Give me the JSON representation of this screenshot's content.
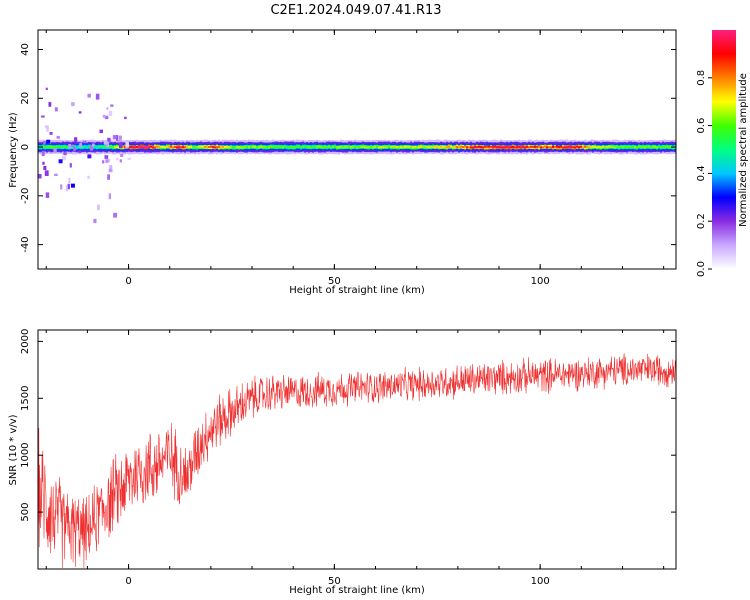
{
  "title": "C2E1.2024.049.07.41.R13",
  "colors": {
    "snr_line": "#f03030",
    "frame": "#000000"
  },
  "chart_data": [
    {
      "type": "heatmap",
      "xlabel": "Height of straight line (km)",
      "ylabel": "Frequency (Hz)",
      "xlim": [
        -22,
        133
      ],
      "ylim": [
        -50,
        48
      ],
      "xticks": [
        "0",
        "50",
        "100"
      ],
      "yticks": [
        "-40",
        "-20",
        "0",
        "20",
        "40"
      ],
      "colorbar": {
        "label": "Normalized spectral amplitude",
        "range": [
          0,
          1
        ],
        "ticks": [
          "0.0",
          "0.2",
          "0.4",
          "0.6",
          "0.8"
        ],
        "colormap": [
          "#ffffff",
          "#c8a8ff",
          "#8a2be2",
          "#0000ff",
          "#00c8ff",
          "#00ff80",
          "#40ff00",
          "#ffff00",
          "#ff8000",
          "#ff0000",
          "#ff2080"
        ]
      },
      "band_center_hz": 0,
      "band_amplitude_profile": [
        {
          "x": -22,
          "amp": 0.55
        },
        {
          "x": -18,
          "amp": 0.6
        },
        {
          "x": -12,
          "amp": 0.5
        },
        {
          "x": -5,
          "amp": 0.55
        },
        {
          "x": 0,
          "amp": 0.95
        },
        {
          "x": 5,
          "amp": 0.98
        },
        {
          "x": 8,
          "amp": 0.7
        },
        {
          "x": 12,
          "amp": 0.95
        },
        {
          "x": 16,
          "amp": 0.6
        },
        {
          "x": 20,
          "amp": 0.9
        },
        {
          "x": 25,
          "amp": 0.65
        },
        {
          "x": 40,
          "amp": 0.6
        },
        {
          "x": 60,
          "amp": 0.65
        },
        {
          "x": 75,
          "amp": 0.72
        },
        {
          "x": 85,
          "amp": 0.92
        },
        {
          "x": 95,
          "amp": 0.95
        },
        {
          "x": 100,
          "amp": 0.85
        },
        {
          "x": 107,
          "amp": 0.95
        },
        {
          "x": 115,
          "amp": 0.65
        },
        {
          "x": 133,
          "amp": 0.6
        }
      ]
    },
    {
      "type": "line",
      "xlabel": "Height of straight line (km)",
      "ylabel": "SNR (10 * v/v)",
      "xlim": [
        -22,
        133
      ],
      "ylim": [
        0,
        2100
      ],
      "xticks": [
        "0",
        "50",
        "100"
      ],
      "yticks": [
        "500",
        "1000",
        "1500",
        "2000"
      ],
      "series": [
        {
          "color": "#f03030",
          "x": [
            -22,
            -18,
            -14,
            -10,
            -6,
            -2,
            2,
            6,
            10,
            14,
            18,
            22,
            26,
            30,
            35,
            40,
            50,
            60,
            70,
            80,
            90,
            100,
            110,
            120,
            133
          ],
          "y": [
            700,
            450,
            350,
            320,
            550,
            700,
            850,
            900,
            1000,
            800,
            1150,
            1300,
            1400,
            1500,
            1550,
            1550,
            1580,
            1600,
            1620,
            1650,
            1680,
            1700,
            1720,
            1750,
            1750
          ],
          "noise_amplitude": [
            600,
            500,
            400,
            350,
            400,
            400,
            400,
            400,
            380,
            350,
            300,
            280,
            250,
            220,
            200,
            180,
            180,
            170,
            170,
            180,
            180,
            180,
            170,
            170,
            170
          ]
        }
      ]
    }
  ]
}
